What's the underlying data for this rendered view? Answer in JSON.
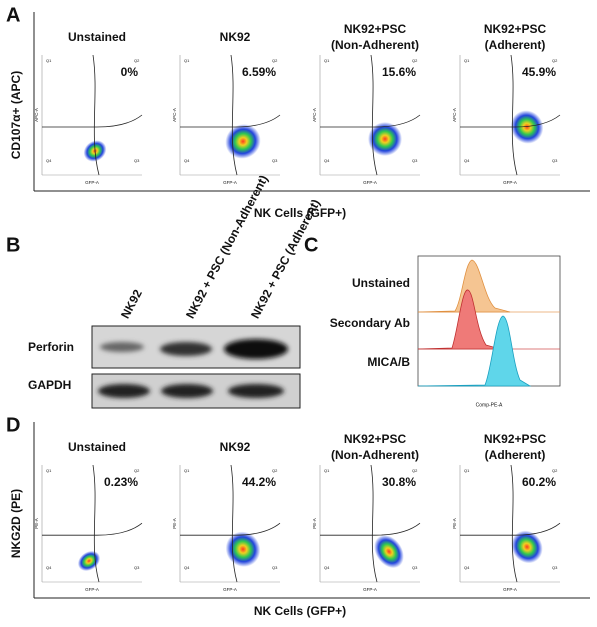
{
  "panel_a": {
    "letter": "A",
    "y_label": "CD107α+ (APC)",
    "x_label": "NK Cells (GFP+)",
    "plot_x_axis": "GFP-A",
    "plot_y_axis": "APC-A",
    "plots": [
      {
        "title": [
          "Unstained"
        ],
        "percent": "0%"
      },
      {
        "title": [
          "NK92"
        ],
        "percent": "6.59%"
      },
      {
        "title": [
          "NK92+PSC",
          "(Non-Adherent)"
        ],
        "percent": "15.6%"
      },
      {
        "title": [
          "NK92+PSC",
          "(Adherent)"
        ],
        "percent": "45.9%"
      }
    ]
  },
  "panel_b": {
    "letter": "B",
    "lanes": [
      "NK92",
      "NK92 + PSC (Non-Adherent)",
      "NK92 + PSC (Adherent)"
    ],
    "rows": [
      "Perforin",
      "GAPDH"
    ]
  },
  "panel_c": {
    "letter": "C",
    "labels": [
      "Unstained",
      "Secondary Ab",
      "MICA/B"
    ],
    "x_axis": "Comp-PE-A"
  },
  "panel_d": {
    "letter": "D",
    "y_label": "NKG2D (PE)",
    "x_label": "NK Cells (GFP+)",
    "plot_x_axis": "GFP-A",
    "plot_y_axis": "PE-A",
    "plots": [
      {
        "title": [
          "Unstained"
        ],
        "percent": "0.23%"
      },
      {
        "title": [
          "NK92"
        ],
        "percent": "44.2%"
      },
      {
        "title": [
          "NK92+PSC",
          "(Non-Adherent)"
        ],
        "percent": "30.8%"
      },
      {
        "title": [
          "NK92+PSC",
          "(Adherent)"
        ],
        "percent": "60.2%"
      }
    ]
  },
  "quadrants": [
    "Q1",
    "Q2",
    "Q3",
    "Q4"
  ]
}
